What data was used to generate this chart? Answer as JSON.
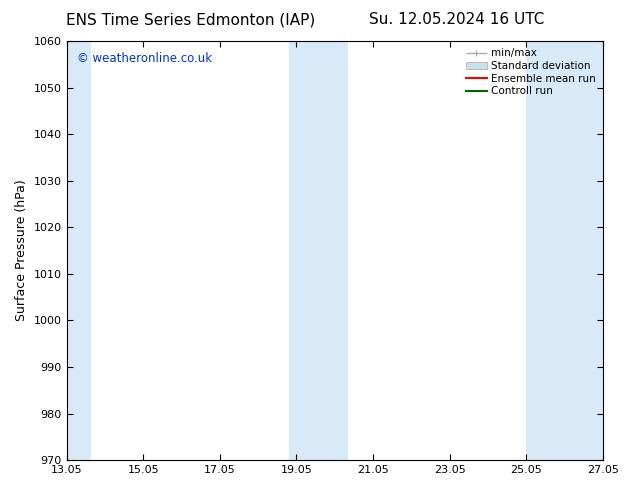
{
  "title_left": "ENS Time Series Edmonton (IAP)",
  "title_right": "Su. 12.05.2024 16 UTC",
  "ylabel": "Surface Pressure (hPa)",
  "xlabel": "",
  "ylim": [
    970,
    1060
  ],
  "yticks": [
    970,
    980,
    990,
    1000,
    1010,
    1020,
    1030,
    1040,
    1050,
    1060
  ],
  "xtick_labels": [
    "13.05",
    "15.05",
    "17.05",
    "19.05",
    "21.05",
    "23.05",
    "25.05",
    "27.05"
  ],
  "xtick_values": [
    0,
    2,
    4,
    6,
    8,
    10,
    12,
    14
  ],
  "xlim": [
    0,
    14
  ],
  "shaded_regions": [
    {
      "x_start": 0.0,
      "x_end": 0.65,
      "color": "#d8eaf8"
    },
    {
      "x_start": 5.8,
      "x_end": 7.35,
      "color": "#d8eaf8"
    },
    {
      "x_start": 12.0,
      "x_end": 14.0,
      "color": "#d8eaf8"
    }
  ],
  "watermark": "© weatheronline.co.uk",
  "watermark_color": "#0033cc",
  "bg_color": "#ffffff",
  "legend_items": [
    {
      "label": "min/max",
      "color": "#aaaaaa",
      "lw": 1.0,
      "style": "errorbar"
    },
    {
      "label": "Standard deviation",
      "color": "#ccddee",
      "lw": 6,
      "style": "band"
    },
    {
      "label": "Ensemble mean run",
      "color": "#ff0000",
      "lw": 1.5,
      "style": "line"
    },
    {
      "label": "Controll run",
      "color": "#006600",
      "lw": 1.5,
      "style": "line"
    }
  ],
  "title_fontsize": 11,
  "axis_label_fontsize": 9,
  "tick_fontsize": 8,
  "legend_fontsize": 7.5,
  "watermark_fontsize": 8.5
}
